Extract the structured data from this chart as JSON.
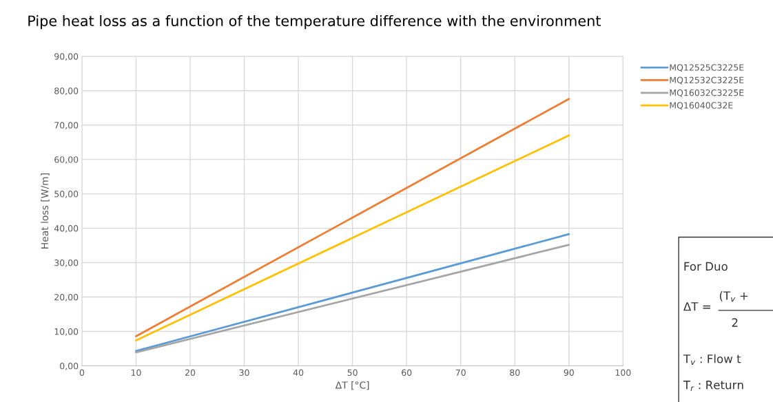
{
  "chart_data": {
    "type": "line",
    "title": "Pipe heat loss as a function of the temperature difference with the environment",
    "xlabel": "ΔT [°C]",
    "ylabel": "Heat loss [W/m]",
    "x": [
      10,
      90
    ],
    "series": [
      {
        "name": "MQ12525C3225E",
        "color": "#5b9bd5",
        "values": [
          4.3,
          38.3
        ]
      },
      {
        "name": "MQ12532C3225E",
        "color": "#ed7d31",
        "values": [
          8.6,
          77.6
        ]
      },
      {
        "name": "MQ16032C3225E",
        "color": "#a5a5a5",
        "values": [
          3.9,
          35.2
        ]
      },
      {
        "name": "MQ16040C32E",
        "color": "#ffc000",
        "values": [
          7.4,
          67.0
        ]
      }
    ],
    "xlim": [
      0,
      100
    ],
    "xticks": [
      0,
      10,
      20,
      30,
      40,
      50,
      60,
      70,
      80,
      90,
      100
    ],
    "ylim": [
      0,
      90
    ],
    "yticks": [
      {
        "value": 0,
        "label": "0,00"
      },
      {
        "value": 10,
        "label": "10,00"
      },
      {
        "value": 20,
        "label": "20,00"
      },
      {
        "value": 30,
        "label": "30,00"
      },
      {
        "value": 40,
        "label": "40,00"
      },
      {
        "value": 50,
        "label": "50,00"
      },
      {
        "value": 60,
        "label": "60,00"
      },
      {
        "value": 70,
        "label": "70,00"
      },
      {
        "value": 80,
        "label": "80,00"
      },
      {
        "value": 90,
        "label": "90,00"
      }
    ],
    "grid": true,
    "legend": "top right",
    "marker": "none",
    "line_style": "solid",
    "annotations": [
      "For Duo",
      "ΔT =",
      "(T$_{v}$ +",
      "2",
      "T$_{v}$ : Flow t",
      "T$_{r}$ : Return"
    ]
  }
}
